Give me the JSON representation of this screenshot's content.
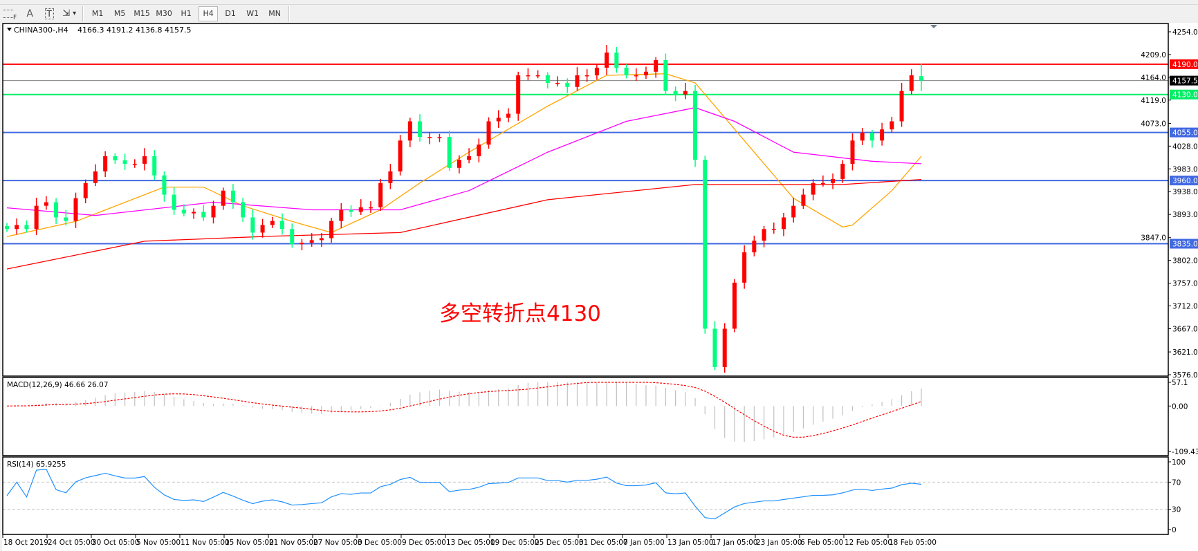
{
  "toolbar": {
    "tools": [
      {
        "icon": "grid-f-icon",
        "label": "F"
      },
      {
        "icon": "text-a-icon",
        "label": "A"
      },
      {
        "icon": "text-label-icon",
        "label": "T"
      },
      {
        "icon": "arrows-dropdown-icon",
        "label": "▾"
      }
    ],
    "timeframes": [
      "M1",
      "M5",
      "M15",
      "M30",
      "H1",
      "H4",
      "D1",
      "W1",
      "MN"
    ],
    "active_timeframe": "H4"
  },
  "chart_header": {
    "symbol": "CHINA300-,H4",
    "ohlc": "4166.3 4191.2 4136.8 4157.5"
  },
  "annotation": "多空转折点4130",
  "colors": {
    "up_candle": "#ff0000",
    "down_candle": "#00ff7f",
    "ma_fast": "#ffa500",
    "ma_mid": "#ff00ff",
    "ma_slow": "#ff0000",
    "resistance": "#ff0000",
    "pivot": "#00ee66",
    "support": "#4169e1",
    "macd_hist": "#c0c0c0",
    "macd_signal": "#ff0000",
    "rsi": "#1e90ff"
  },
  "chart_data": {
    "type": "candlestick",
    "price_axis": {
      "range": [
        3576,
        4254
      ],
      "ticks": [
        "4254.0",
        "4209.0",
        "4164.0",
        "4119.0",
        "4073.0",
        "4028.0",
        "3983.0",
        "3938.0",
        "3893.0",
        "3847.0",
        "3802.0",
        "3757.0",
        "3712.0",
        "3667.0",
        "3621.0",
        "3576.0"
      ]
    },
    "date_axis": [
      "18 Oct 2019",
      "24 Oct 05:00",
      "30 Oct 05:00",
      "5 Nov 05:00",
      "11 Nov 05:00",
      "15 Nov 05:00",
      "21 Nov 05:00",
      "27 Nov 05:00",
      "3 Dec 05:00",
      "9 Dec 05:00",
      "13 Dec 05:00",
      "19 Dec 05:00",
      "25 Dec 05:00",
      "31 Dec 05:00",
      "7 Jan 05:00",
      "13 Jan 05:00",
      "17 Jan 05:00",
      "23 Jan 05:00",
      "6 Feb 05:00",
      "12 Feb 05:00",
      "18 Feb 05:00"
    ],
    "first_open": 3870,
    "last_open": 4166.3,
    "last_high": 4191.2,
    "last_low": 4136.8,
    "closes": [
      3864,
      3872,
      3864,
      3910,
      3917,
      3887,
      3880,
      3925,
      3955,
      3978,
      4008,
      4000,
      3993,
      3993,
      4008,
      3970,
      3932,
      3902,
      3895,
      3898,
      3887,
      3910,
      3940,
      3917,
      3887,
      3857,
      3872,
      3880,
      3864,
      3834,
      3837,
      3842,
      3846,
      3880,
      3902,
      3898,
      3907,
      3907,
      3955,
      3978,
      4039,
      4077,
      4046,
      4046,
      4046,
      3985,
      4001,
      4008,
      4031,
      4077,
      4084,
      4092,
      4168,
      4168,
      4168,
      4153,
      4153,
      4145,
      4168,
      4168,
      4183,
      4213,
      4183,
      4168,
      4168,
      4175,
      4198,
      4137,
      4130,
      4137,
      4001,
      3667,
      3591,
      3667,
      3758,
      3818,
      3841,
      3864,
      3864,
      3887,
      3910,
      3932,
      3955,
      3955,
      3963,
      3993,
      4039,
      4054,
      4039,
      4061,
      4077,
      4137,
      4168,
      4157.5
    ],
    "ma_lines": [
      {
        "color_key": "ma_fast",
        "points": [
          [
            0,
            3849
          ],
          [
            7,
            3879
          ],
          [
            16,
            3947
          ],
          [
            20,
            3947
          ],
          [
            24,
            3910
          ],
          [
            29,
            3879
          ],
          [
            33,
            3857
          ],
          [
            38,
            3902
          ],
          [
            42,
            3955
          ],
          [
            47,
            4016
          ],
          [
            55,
            4107
          ],
          [
            61,
            4168
          ],
          [
            67,
            4171
          ],
          [
            70,
            4153
          ],
          [
            76,
            4016
          ],
          [
            80,
            3925
          ],
          [
            85,
            3868
          ],
          [
            86,
            3872
          ],
          [
            90,
            3940
          ],
          [
            93,
            4008
          ]
        ]
      },
      {
        "color_key": "ma_mid",
        "points": [
          [
            0,
            3906
          ],
          [
            9,
            3891
          ],
          [
            21,
            3917
          ],
          [
            31,
            3902
          ],
          [
            40,
            3902
          ],
          [
            47,
            3940
          ],
          [
            55,
            4016
          ],
          [
            63,
            4077
          ],
          [
            70,
            4104
          ],
          [
            74,
            4077
          ],
          [
            80,
            4016
          ],
          [
            88,
            3998
          ],
          [
            93,
            3993
          ]
        ]
      },
      {
        "color_key": "ma_slow",
        "points": [
          [
            0,
            3785
          ],
          [
            14,
            3840
          ],
          [
            27,
            3850
          ],
          [
            40,
            3857
          ],
          [
            55,
            3922
          ],
          [
            70,
            3952
          ],
          [
            85,
            3952
          ],
          [
            93,
            3962
          ]
        ]
      }
    ],
    "levels": [
      {
        "value": 4190.0,
        "label": "4190.0",
        "color_key": "resistance"
      },
      {
        "value": 4130.0,
        "label": "4130.0",
        "color_key": "pivot"
      },
      {
        "value": 4055.0,
        "label": "4055.0",
        "color_key": "support"
      },
      {
        "value": 3960.0,
        "label": "3960.0",
        "color_key": "support"
      },
      {
        "value": 3835.0,
        "label": "3835.0",
        "color_key": "support"
      }
    ],
    "current_price": {
      "value": 4157.5,
      "label": "4157.5"
    }
  },
  "macd": {
    "label": "MACD(12,26,9) 46.66 26.07",
    "range": [
      -109.43,
      57.1
    ],
    "ticks": [
      "57.1",
      "0.00",
      "-109.43"
    ]
  },
  "rsi": {
    "label": "RSI(14) 65.9255",
    "levels": [
      30,
      70
    ],
    "ticks": [
      "100",
      "70",
      "30",
      "0"
    ]
  }
}
